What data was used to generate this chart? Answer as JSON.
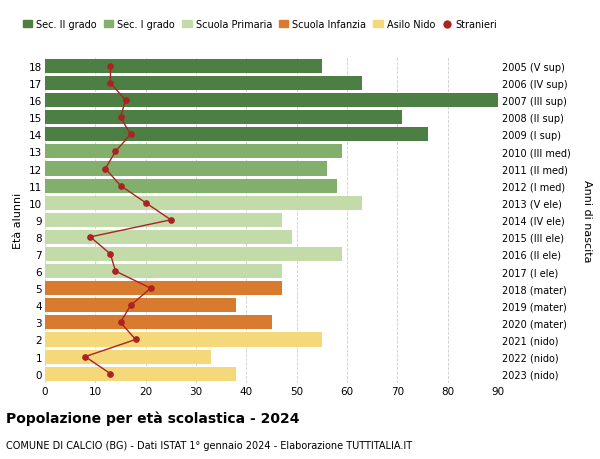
{
  "ages": [
    18,
    17,
    16,
    15,
    14,
    13,
    12,
    11,
    10,
    9,
    8,
    7,
    6,
    5,
    4,
    3,
    2,
    1,
    0
  ],
  "right_labels": [
    "2005 (V sup)",
    "2006 (IV sup)",
    "2007 (III sup)",
    "2008 (II sup)",
    "2009 (I sup)",
    "2010 (III med)",
    "2011 (II med)",
    "2012 (I med)",
    "2013 (V ele)",
    "2014 (IV ele)",
    "2015 (III ele)",
    "2016 (II ele)",
    "2017 (I ele)",
    "2018 (mater)",
    "2019 (mater)",
    "2020 (mater)",
    "2021 (nido)",
    "2022 (nido)",
    "2023 (nido)"
  ],
  "bar_values": [
    55,
    63,
    90,
    71,
    76,
    59,
    56,
    58,
    63,
    47,
    49,
    59,
    47,
    47,
    38,
    45,
    55,
    33,
    38
  ],
  "bar_colors": [
    "#4d7f44",
    "#4d7f44",
    "#4d7f44",
    "#4d7f44",
    "#4d7f44",
    "#82b06c",
    "#82b06c",
    "#82b06c",
    "#c2dba8",
    "#c2dba8",
    "#c2dba8",
    "#c2dba8",
    "#c2dba8",
    "#d97b2e",
    "#d97b2e",
    "#d97b2e",
    "#f5d87a",
    "#f5d87a",
    "#f5d87a"
  ],
  "stranieri_values": [
    13,
    13,
    16,
    15,
    17,
    14,
    12,
    15,
    20,
    25,
    9,
    13,
    14,
    21,
    17,
    15,
    18,
    8,
    13
  ],
  "stranieri_color": "#aa2222",
  "xlim": [
    0,
    90
  ],
  "ylabel": "Età alunni",
  "right_ylabel": "Anni di nascita",
  "title": "Popolazione per età scolastica - 2024",
  "subtitle": "COMUNE DI CALCIO (BG) - Dati ISTAT 1° gennaio 2024 - Elaborazione TUTTITALIA.IT",
  "legend_items": [
    {
      "label": "Sec. II grado",
      "color": "#4d7f44",
      "type": "patch"
    },
    {
      "label": "Sec. I grado",
      "color": "#82b06c",
      "type": "patch"
    },
    {
      "label": "Scuola Primaria",
      "color": "#c2dba8",
      "type": "patch"
    },
    {
      "label": "Scuola Infanzia",
      "color": "#d97b2e",
      "type": "patch"
    },
    {
      "label": "Asilo Nido",
      "color": "#f5d87a",
      "type": "patch"
    },
    {
      "label": "Stranieri",
      "color": "#aa2222",
      "type": "dot"
    }
  ],
  "background_color": "#ffffff",
  "grid_color": "#cccccc"
}
